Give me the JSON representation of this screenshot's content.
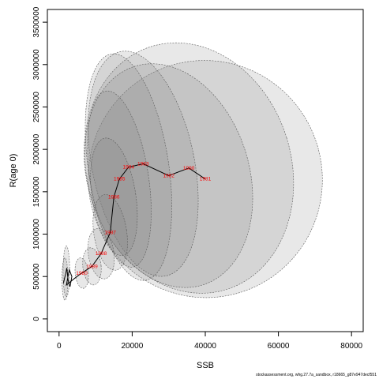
{
  "chart_data": {
    "type": "scatter",
    "title": "",
    "xlabel": "SSB",
    "ylabel": "R(age 0)",
    "xlim": [
      -3200,
      83200
    ],
    "ylim": [
      -150000,
      3650000
    ],
    "x_ticks": [
      0,
      20000,
      40000,
      60000,
      80000
    ],
    "x_tick_labels": [
      "0",
      "20000",
      "40000",
      "60000",
      "80000"
    ],
    "y_ticks": [
      0,
      500000,
      1000000,
      1500000,
      2000000,
      2500000,
      3000000,
      3500000
    ],
    "y_tick_labels": [
      "0",
      "500000",
      "1000000",
      "1500000",
      "2000000",
      "2500000",
      "3000000",
      "3500000"
    ],
    "grid": false,
    "line_color": "#000000",
    "label_color": "#ff0000",
    "ellipse_fill": "#808080",
    "ellipse_stroke": "#5a5a5a",
    "series": [
      {
        "points": [
          {
            "label": "",
            "x": 1200,
            "y": 420000
          },
          {
            "label": "",
            "x": 1500,
            "y": 480000
          },
          {
            "label": "",
            "x": 1800,
            "y": 530000
          },
          {
            "label": "",
            "x": 2100,
            "y": 600000
          },
          {
            "label": "",
            "x": 2500,
            "y": 450000
          },
          {
            "label": "",
            "x": 3000,
            "y": 380000
          },
          {
            "label": "",
            "x": 3500,
            "y": 500000
          },
          {
            "label": "",
            "x": 2800,
            "y": 580000
          },
          {
            "label": "",
            "x": 2000,
            "y": 400000
          },
          {
            "label": "",
            "x": 4000,
            "y": 470000
          },
          {
            "label": "",
            "x": 5500,
            "y": 520000
          },
          {
            "label": "1980",
            "x": 6200,
            "y": 540000
          },
          {
            "label": "1989",
            "x": 9000,
            "y": 620000
          },
          {
            "label": "1988",
            "x": 11500,
            "y": 770000
          },
          {
            "label": "1987",
            "x": 14000,
            "y": 1020000
          },
          {
            "label": "1986",
            "x": 15000,
            "y": 1440000
          },
          {
            "label": "1985",
            "x": 16500,
            "y": 1650000
          },
          {
            "label": "1984",
            "x": 19000,
            "y": 1790000
          },
          {
            "label": "1983",
            "x": 23000,
            "y": 1830000
          },
          {
            "label": "1982",
            "x": 30000,
            "y": 1690000
          },
          {
            "label": "1990",
            "x": 35500,
            "y": 1780000
          },
          {
            "label": "1981",
            "x": 40000,
            "y": 1650000
          }
        ]
      }
    ],
    "uncertainty_ellipses": [
      {
        "cx": 40000,
        "cy": 1650000,
        "rx": 32000,
        "ry": 1400000,
        "rotation": 0.25
      },
      {
        "cx": 35500,
        "cy": 1780000,
        "rx": 28000,
        "ry": 1500000,
        "rotation": 0.3
      },
      {
        "cx": 30000,
        "cy": 1690000,
        "rx": 22000,
        "ry": 1350000,
        "rotation": 0.3
      },
      {
        "cx": 23000,
        "cy": 1830000,
        "rx": 14000,
        "ry": 1350000,
        "rotation": 0.2
      },
      {
        "cx": 19000,
        "cy": 1790000,
        "rx": 11000,
        "ry": 1350000,
        "rotation": 0.15
      },
      {
        "cx": 16500,
        "cy": 1650000,
        "rx": 8000,
        "ry": 1050000,
        "rotation": 0.15
      },
      {
        "cx": 15000,
        "cy": 1440000,
        "rx": 6000,
        "ry": 700000,
        "rotation": 0.15
      },
      {
        "cx": 14000,
        "cy": 1020000,
        "rx": 4500,
        "ry": 450000,
        "rotation": 0.15
      },
      {
        "cx": 11500,
        "cy": 770000,
        "rx": 3500,
        "ry": 300000,
        "rotation": 0.15
      },
      {
        "cx": 9000,
        "cy": 620000,
        "rx": 2500,
        "ry": 220000,
        "rotation": 0.1
      },
      {
        "cx": 6200,
        "cy": 540000,
        "rx": 1800,
        "ry": 180000,
        "rotation": 0.1
      },
      {
        "cx": 2000,
        "cy": 560000,
        "rx": 900,
        "ry": 300000,
        "rotation": 0.0
      },
      {
        "cx": 1600,
        "cy": 470000,
        "rx": 800,
        "ry": 250000,
        "rotation": 0.0
      }
    ]
  },
  "footer": {
    "note": "stockassessment.org, whg.27.7a_sandbox, r18665_g87e947decf551"
  }
}
